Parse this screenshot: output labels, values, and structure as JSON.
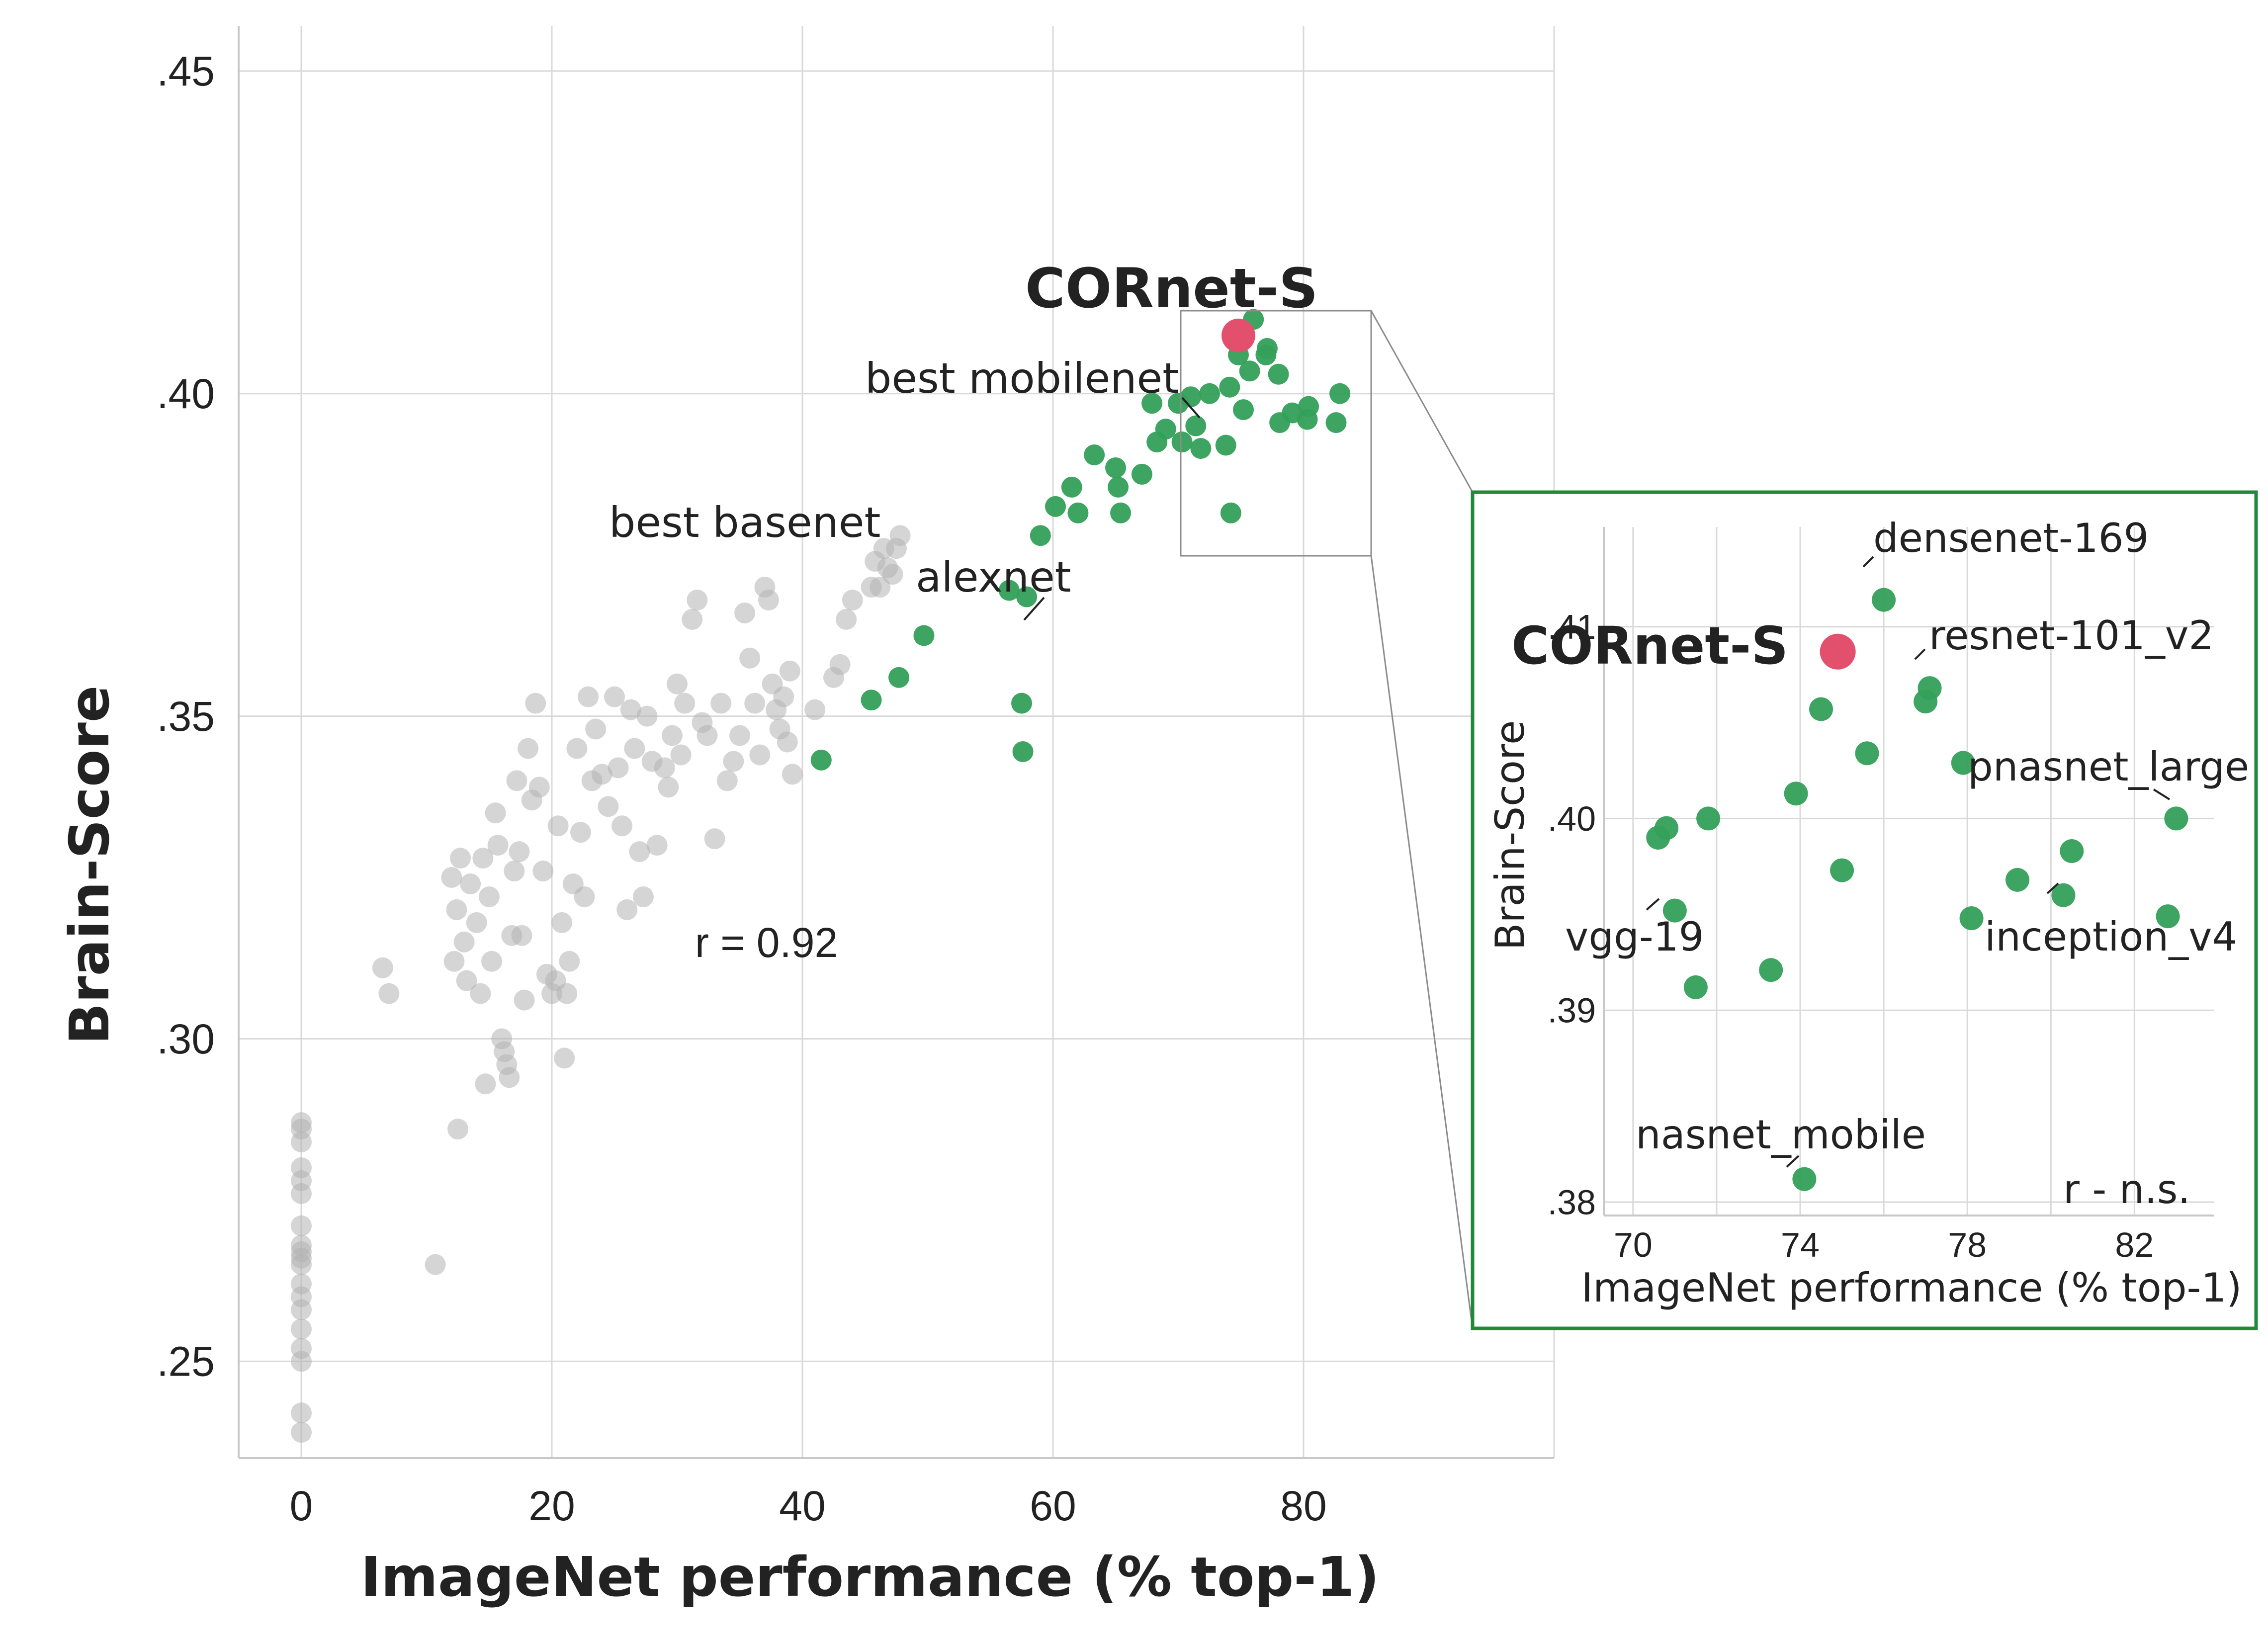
{
  "chart_data": [
    {
      "type": "scatter",
      "xlabel": "ImageNet performance (% top-1)",
      "ylabel": "Brain-Score",
      "xlim": [
        -5,
        100
      ],
      "ylim": [
        0.235,
        0.457
      ],
      "xticks": [
        {
          "value": 0,
          "label": "0"
        },
        {
          "value": 20,
          "label": "20"
        },
        {
          "value": 40,
          "label": "40"
        },
        {
          "value": 60,
          "label": "60"
        },
        {
          "value": 80,
          "label": "80"
        }
      ],
      "yticks": [
        {
          "value": 0.25,
          "label": ".25"
        },
        {
          "value": 0.3,
          "label": ".30"
        },
        {
          "value": 0.35,
          "label": ".35"
        },
        {
          "value": 0.4,
          "label": ".40"
        },
        {
          "value": 0.45,
          "label": ".45"
        }
      ],
      "grid": true,
      "stat_label": "r = 0.92",
      "colors": {
        "basenet": "#b3b3b3",
        "model": "#33a058",
        "highlight": "#e3506e"
      },
      "series": [
        {
          "points": [
            [
              0,
              0.239
            ],
            [
              0,
              0.242
            ],
            [
              0,
              0.25
            ],
            [
              0,
              0.252
            ],
            [
              0,
              0.255
            ],
            [
              0,
              0.258
            ],
            [
              0,
              0.26
            ],
            [
              0,
              0.262
            ],
            [
              0,
              0.265
            ],
            [
              0,
              0.266
            ],
            [
              0,
              0.267
            ],
            [
              0,
              0.268
            ],
            [
              0,
              0.271
            ],
            [
              0,
              0.276
            ],
            [
              0,
              0.278
            ],
            [
              0,
              0.28
            ],
            [
              0,
              0.284
            ],
            [
              0,
              0.286
            ],
            [
              0,
              0.287
            ],
            [
              6.5,
              0.311
            ],
            [
              7,
              0.307
            ],
            [
              10.7,
              0.265
            ],
            [
              12,
              0.325
            ],
            [
              12.2,
              0.312
            ],
            [
              12.4,
              0.32
            ],
            [
              12.5,
              0.286
            ],
            [
              12.7,
              0.328
            ],
            [
              13,
              0.315
            ],
            [
              13.2,
              0.309
            ],
            [
              13.5,
              0.324
            ],
            [
              14,
              0.318
            ],
            [
              14.3,
              0.307
            ],
            [
              14.5,
              0.328
            ],
            [
              14.7,
              0.293
            ],
            [
              15,
              0.322
            ],
            [
              15.2,
              0.312
            ],
            [
              15.5,
              0.335
            ],
            [
              15.7,
              0.33
            ],
            [
              16,
              0.3
            ],
            [
              16.2,
              0.298
            ],
            [
              16.4,
              0.296
            ],
            [
              16.6,
              0.294
            ],
            [
              16.8,
              0.316
            ],
            [
              17,
              0.326
            ],
            [
              17.2,
              0.34
            ],
            [
              17.4,
              0.329
            ],
            [
              17.6,
              0.316
            ],
            [
              17.8,
              0.306
            ],
            [
              18.1,
              0.345
            ],
            [
              18.4,
              0.337
            ],
            [
              18.7,
              0.352
            ],
            [
              19,
              0.339
            ],
            [
              19.3,
              0.326
            ],
            [
              19.6,
              0.31
            ],
            [
              20,
              0.307
            ],
            [
              20.3,
              0.309
            ],
            [
              20.5,
              0.333
            ],
            [
              20.8,
              0.318
            ],
            [
              21,
              0.297
            ],
            [
              21.2,
              0.307
            ],
            [
              21.4,
              0.312
            ],
            [
              21.7,
              0.324
            ],
            [
              22,
              0.345
            ],
            [
              22.3,
              0.332
            ],
            [
              22.6,
              0.322
            ],
            [
              22.9,
              0.353
            ],
            [
              23.2,
              0.34
            ],
            [
              23.5,
              0.348
            ],
            [
              24,
              0.341
            ],
            [
              24.5,
              0.336
            ],
            [
              25,
              0.353
            ],
            [
              25.3,
              0.342
            ],
            [
              25.6,
              0.333
            ],
            [
              26,
              0.32
            ],
            [
              26.3,
              0.351
            ],
            [
              26.6,
              0.345
            ],
            [
              27,
              0.329
            ],
            [
              27.3,
              0.322
            ],
            [
              27.6,
              0.35
            ],
            [
              28,
              0.343
            ],
            [
              28.4,
              0.33
            ],
            [
              29,
              0.342
            ],
            [
              29.3,
              0.339
            ],
            [
              29.6,
              0.347
            ],
            [
              30,
              0.355
            ],
            [
              30.3,
              0.344
            ],
            [
              30.6,
              0.352
            ],
            [
              31.2,
              0.365
            ],
            [
              31.6,
              0.368
            ],
            [
              32,
              0.349
            ],
            [
              32.4,
              0.347
            ],
            [
              33,
              0.331
            ],
            [
              33.5,
              0.352
            ],
            [
              34,
              0.34
            ],
            [
              34.5,
              0.343
            ],
            [
              35,
              0.347
            ],
            [
              35.4,
              0.366
            ],
            [
              35.8,
              0.359
            ],
            [
              36.2,
              0.352
            ],
            [
              36.6,
              0.344
            ],
            [
              37,
              0.37
            ],
            [
              37.3,
              0.368
            ],
            [
              37.6,
              0.355
            ],
            [
              37.9,
              0.351
            ],
            [
              38.2,
              0.348
            ],
            [
              38.5,
              0.353
            ],
            [
              38.8,
              0.346
            ],
            [
              39,
              0.357
            ],
            [
              39.2,
              0.341
            ],
            [
              41,
              0.351
            ],
            [
              42.5,
              0.356
            ],
            [
              43,
              0.358
            ],
            [
              43.5,
              0.365
            ],
            [
              44,
              0.368
            ],
            [
              45.5,
              0.37
            ],
            [
              45.8,
              0.374
            ],
            [
              46.2,
              0.37
            ],
            [
              46.5,
              0.376
            ],
            [
              46.8,
              0.373
            ],
            [
              47.2,
              0.372
            ],
            [
              47.5,
              0.376
            ],
            [
              47.8,
              0.378
            ]
          ]
        },
        {
          "points": [
            [
              41.5,
              0.3432
            ],
            [
              45.5,
              0.3525
            ],
            [
              47.7,
              0.356
            ],
            [
              49.7,
              0.3625
            ],
            [
              56.5,
              0.3695
            ],
            [
              57.5,
              0.352
            ],
            [
              57.6,
              0.3445
            ],
            [
              57.9,
              0.3685
            ],
            [
              59,
              0.378
            ],
            [
              60.2,
              0.3825
            ],
            [
              61.5,
              0.3855
            ],
            [
              62,
              0.3815
            ],
            [
              63.3,
              0.3905
            ],
            [
              65,
              0.3885
            ],
            [
              65.2,
              0.3855
            ],
            [
              65.4,
              0.3815
            ],
            [
              67.1,
              0.3875
            ],
            [
              67.9,
              0.3985
            ],
            [
              68.3,
              0.3925
            ],
            [
              69,
              0.3945
            ],
            [
              70,
              0.3985
            ],
            [
              70.3,
              0.3925
            ],
            [
              71,
              0.3995
            ],
            [
              71.4,
              0.395
            ],
            [
              71.8,
              0.3915
            ],
            [
              72.5,
              0.4
            ],
            [
              73.8,
              0.392
            ],
            [
              74.1,
              0.401
            ],
            [
              74.2,
              0.3815
            ],
            [
              74.8,
              0.406
            ],
            [
              75.2,
              0.3975
            ],
            [
              75.7,
              0.4035
            ],
            [
              76,
              0.4115
            ],
            [
              77,
              0.406
            ],
            [
              77.1,
              0.407
            ],
            [
              78,
              0.403
            ],
            [
              78.1,
              0.3955
            ],
            [
              79.1,
              0.397
            ],
            [
              80.3,
              0.396
            ],
            [
              80.4,
              0.398
            ],
            [
              82.6,
              0.3955
            ],
            [
              82.9,
              0.4
            ]
          ]
        },
        {
          "points": [
            [
              74.8,
              0.409
            ]
          ]
        }
      ],
      "annotations": [
        {
          "text": "CORnet-S"
        },
        {
          "text": "best mobilenet"
        },
        {
          "text": "best basenet"
        },
        {
          "text": "alexnet"
        }
      ]
    },
    {
      "type": "scatter",
      "xlabel": "ImageNet performance (% top-1)",
      "ylabel": "Brain-Score",
      "xlim": [
        69.3,
        83.9
      ],
      "ylim": [
        0.3793,
        0.4152
      ],
      "xticks": [
        {
          "value": 70,
          "label": "70"
        },
        {
          "value": 74,
          "label": "74"
        },
        {
          "value": 78,
          "label": "78"
        },
        {
          "value": 82,
          "label": "82"
        }
      ],
      "yticks": [
        {
          "value": 0.38,
          "label": ".38"
        },
        {
          "value": 0.39,
          "label": ".39"
        },
        {
          "value": 0.4,
          "label": ".40"
        },
        {
          "value": 0.41,
          "label": ".41"
        }
      ],
      "grid": true,
      "stat_label": "r - n.s.",
      "series": [
        {
          "points": [
            [
              70.6,
              0.399
            ],
            [
              70.8,
              0.3995
            ],
            [
              71,
              0.3952
            ],
            [
              71.5,
              0.3912
            ],
            [
              71.8,
              0.4
            ],
            [
              73.3,
              0.3921
            ],
            [
              73.9,
              0.4013
            ],
            [
              74.1,
              0.3812
            ],
            [
              74.5,
              0.4057
            ],
            [
              75,
              0.3973
            ],
            [
              75.6,
              0.4034
            ],
            [
              76,
              0.4114
            ],
            [
              77,
              0.4061
            ],
            [
              77.1,
              0.4068
            ],
            [
              77.9,
              0.4029
            ],
            [
              78.1,
              0.3948
            ],
            [
              79.2,
              0.3968
            ],
            [
              80.3,
              0.396
            ],
            [
              80.5,
              0.3983
            ],
            [
              82.8,
              0.3949
            ],
            [
              83,
              0.4
            ]
          ]
        },
        {
          "points": [
            [
              74.9,
              0.4087
            ]
          ]
        }
      ],
      "annotations": [
        {
          "text": "densenet-169"
        },
        {
          "text": "CORnet-S"
        },
        {
          "text": "resnet-101_v2"
        },
        {
          "text": "pnasnet_large"
        },
        {
          "text": "vgg-19"
        },
        {
          "text": "inception_v4"
        },
        {
          "text": "nasnet_mobile"
        }
      ]
    }
  ]
}
